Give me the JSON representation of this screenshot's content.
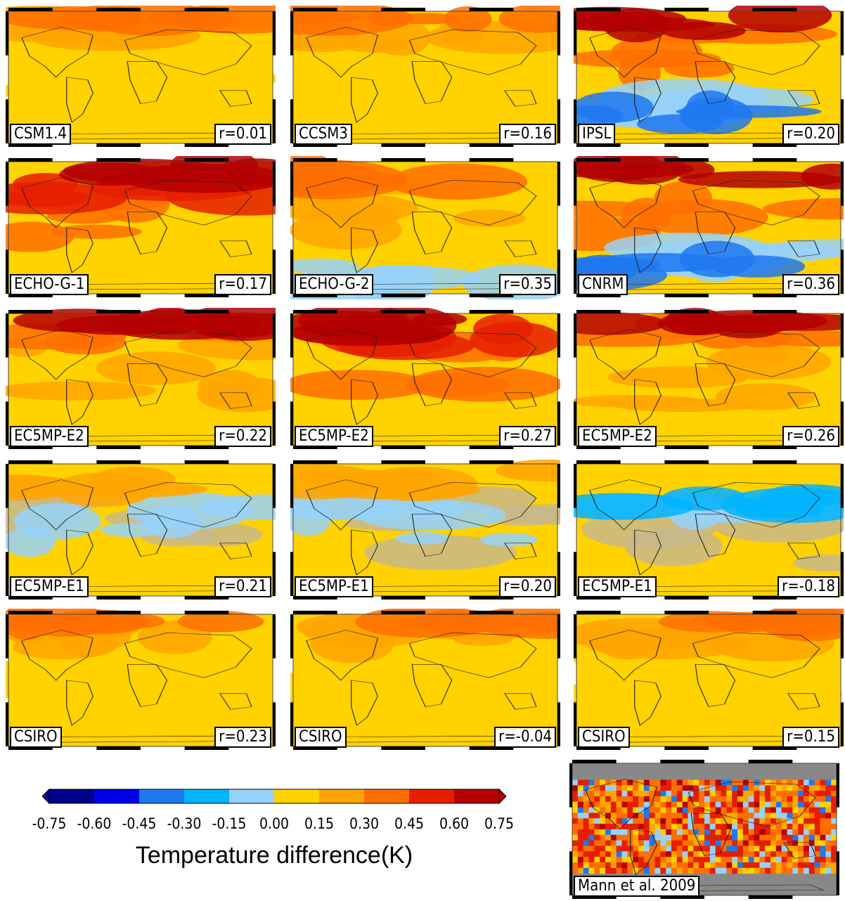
{
  "panels": [
    {
      "label": "CSM1.4",
      "r": "r=0.01",
      "theme": "mild-warm"
    },
    {
      "label": "CCSM3",
      "r": "r=0.16",
      "theme": "mild-warm"
    },
    {
      "label": "IPSL",
      "r": "r=0.20",
      "theme": "strong-warm-south-cool"
    },
    {
      "label": "ECHO-G-1",
      "r": "r=0.17",
      "theme": "strong-warm"
    },
    {
      "label": "ECHO-G-2",
      "r": "r=0.35",
      "theme": "warm-south-cool"
    },
    {
      "label": "CNRM",
      "r": "r=0.36",
      "theme": "strong-warm-south-cool"
    },
    {
      "label": "EC5MP-E2",
      "r": "r=0.22",
      "theme": "warm"
    },
    {
      "label": "EC5MP-E2",
      "r": "r=0.27",
      "theme": "strong-warm"
    },
    {
      "label": "EC5MP-E2",
      "r": "r=0.26",
      "theme": "warm"
    },
    {
      "label": "EC5MP-E1",
      "r": "r=0.21",
      "theme": "neutral"
    },
    {
      "label": "EC5MP-E1",
      "r": "r=0.20",
      "theme": "neutral"
    },
    {
      "label": "EC5MP-E1",
      "r": "r=-0.18",
      "theme": "neutral-cool"
    },
    {
      "label": "CSIRO",
      "r": "r=0.23",
      "theme": "mild-warm"
    },
    {
      "label": "CSIRO",
      "r": "r=-0.04",
      "theme": "mild-warm"
    },
    {
      "label": "CSIRO",
      "r": "r=0.15",
      "theme": "mild-warm"
    },
    {
      "label": "Mann et al. 2009",
      "r": "",
      "theme": "reconstruction"
    }
  ],
  "colorbar": {
    "title": "Temperature difference(K)",
    "ticks": [
      "-0.75",
      "-0.60",
      "-0.45",
      "-0.30",
      "-0.15",
      "0.00",
      "0.15",
      "0.30",
      "0.45",
      "0.60",
      "0.75"
    ],
    "colors": [
      "#00008b",
      "#0000e6",
      "#1e78f0",
      "#00b4ff",
      "#96d2fa",
      "#ffd200",
      "#ffa500",
      "#ff6e00",
      "#e61e00",
      "#b40000"
    ]
  }
}
